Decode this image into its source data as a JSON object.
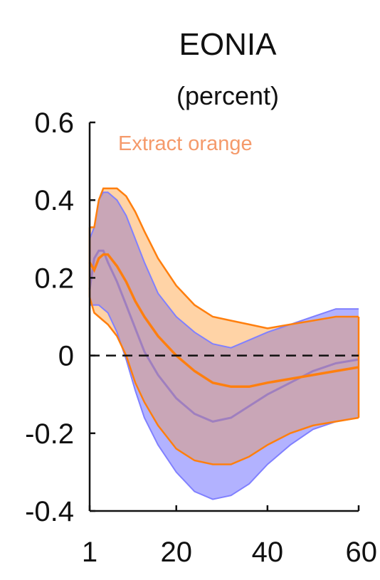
{
  "chart_data": {
    "type": "area",
    "title": "EONIA",
    "subtitle": "(percent)",
    "annotation": "Extract orange",
    "xlim": [
      1,
      60
    ],
    "ylim": [
      -0.4,
      0.6
    ],
    "x_ticks": [
      1,
      20,
      40,
      60
    ],
    "y_ticks": [
      0.6,
      0.4,
      0.2,
      0,
      -0.2,
      -0.4
    ],
    "y_tick_labels": [
      "0.6",
      "0.4",
      "0.2",
      "0",
      "-0.2",
      "-0.4"
    ],
    "x_tick_labels": [
      "1",
      "20",
      "40",
      "60"
    ],
    "zero_line": "dashed",
    "grid": false,
    "colors": {
      "orange": "#ff7f0e",
      "orange_fill": "#ffd3a6",
      "blue": "#8080ff",
      "blue_fill": "#b2b2ff",
      "overlap_fill": "#c9a6b7",
      "blue_median": "#9f7fbf",
      "annotation": "#f59a6b",
      "axis": "#111111"
    },
    "series": [
      {
        "band": "blue",
        "x": [
          1,
          2,
          3,
          4,
          5,
          7,
          9,
          11,
          13,
          16,
          20,
          24,
          28,
          32,
          36,
          40,
          45,
          50,
          55,
          60
        ],
        "median": [
          0.17,
          0.25,
          0.27,
          0.27,
          0.24,
          0.19,
          0.13,
          0.07,
          0.01,
          -0.05,
          -0.11,
          -0.15,
          -0.17,
          -0.16,
          -0.13,
          -0.1,
          -0.07,
          -0.04,
          -0.02,
          -0.01
        ],
        "upper": [
          0.3,
          0.33,
          0.4,
          0.42,
          0.42,
          0.4,
          0.36,
          0.3,
          0.24,
          0.16,
          0.1,
          0.06,
          0.03,
          0.02,
          0.04,
          0.06,
          0.08,
          0.1,
          0.12,
          0.12
        ],
        "lower": [
          0.13,
          0.13,
          0.13,
          0.12,
          0.11,
          0.06,
          -0.01,
          -0.09,
          -0.16,
          -0.23,
          -0.3,
          -0.35,
          -0.37,
          -0.36,
          -0.33,
          -0.28,
          -0.23,
          -0.19,
          -0.17,
          -0.16
        ]
      },
      {
        "band": "orange",
        "x": [
          1,
          2,
          3,
          4,
          5,
          7,
          9,
          11,
          13,
          16,
          20,
          24,
          28,
          32,
          36,
          40,
          45,
          50,
          55,
          60
        ],
        "median": [
          0.24,
          0.22,
          0.25,
          0.26,
          0.26,
          0.23,
          0.19,
          0.14,
          0.1,
          0.05,
          0,
          -0.04,
          -0.07,
          -0.08,
          -0.08,
          -0.07,
          -0.06,
          -0.05,
          -0.04,
          -0.03
        ],
        "upper": [
          0.33,
          0.33,
          0.4,
          0.43,
          0.43,
          0.43,
          0.41,
          0.37,
          0.32,
          0.25,
          0.18,
          0.13,
          0.1,
          0.09,
          0.08,
          0.07,
          0.08,
          0.09,
          0.1,
          0.1
        ],
        "lower": [
          0.15,
          0.11,
          0.1,
          0.09,
          0.08,
          0.05,
          0,
          -0.07,
          -0.12,
          -0.18,
          -0.24,
          -0.27,
          -0.28,
          -0.28,
          -0.26,
          -0.23,
          -0.2,
          -0.18,
          -0.17,
          -0.16
        ]
      }
    ]
  }
}
